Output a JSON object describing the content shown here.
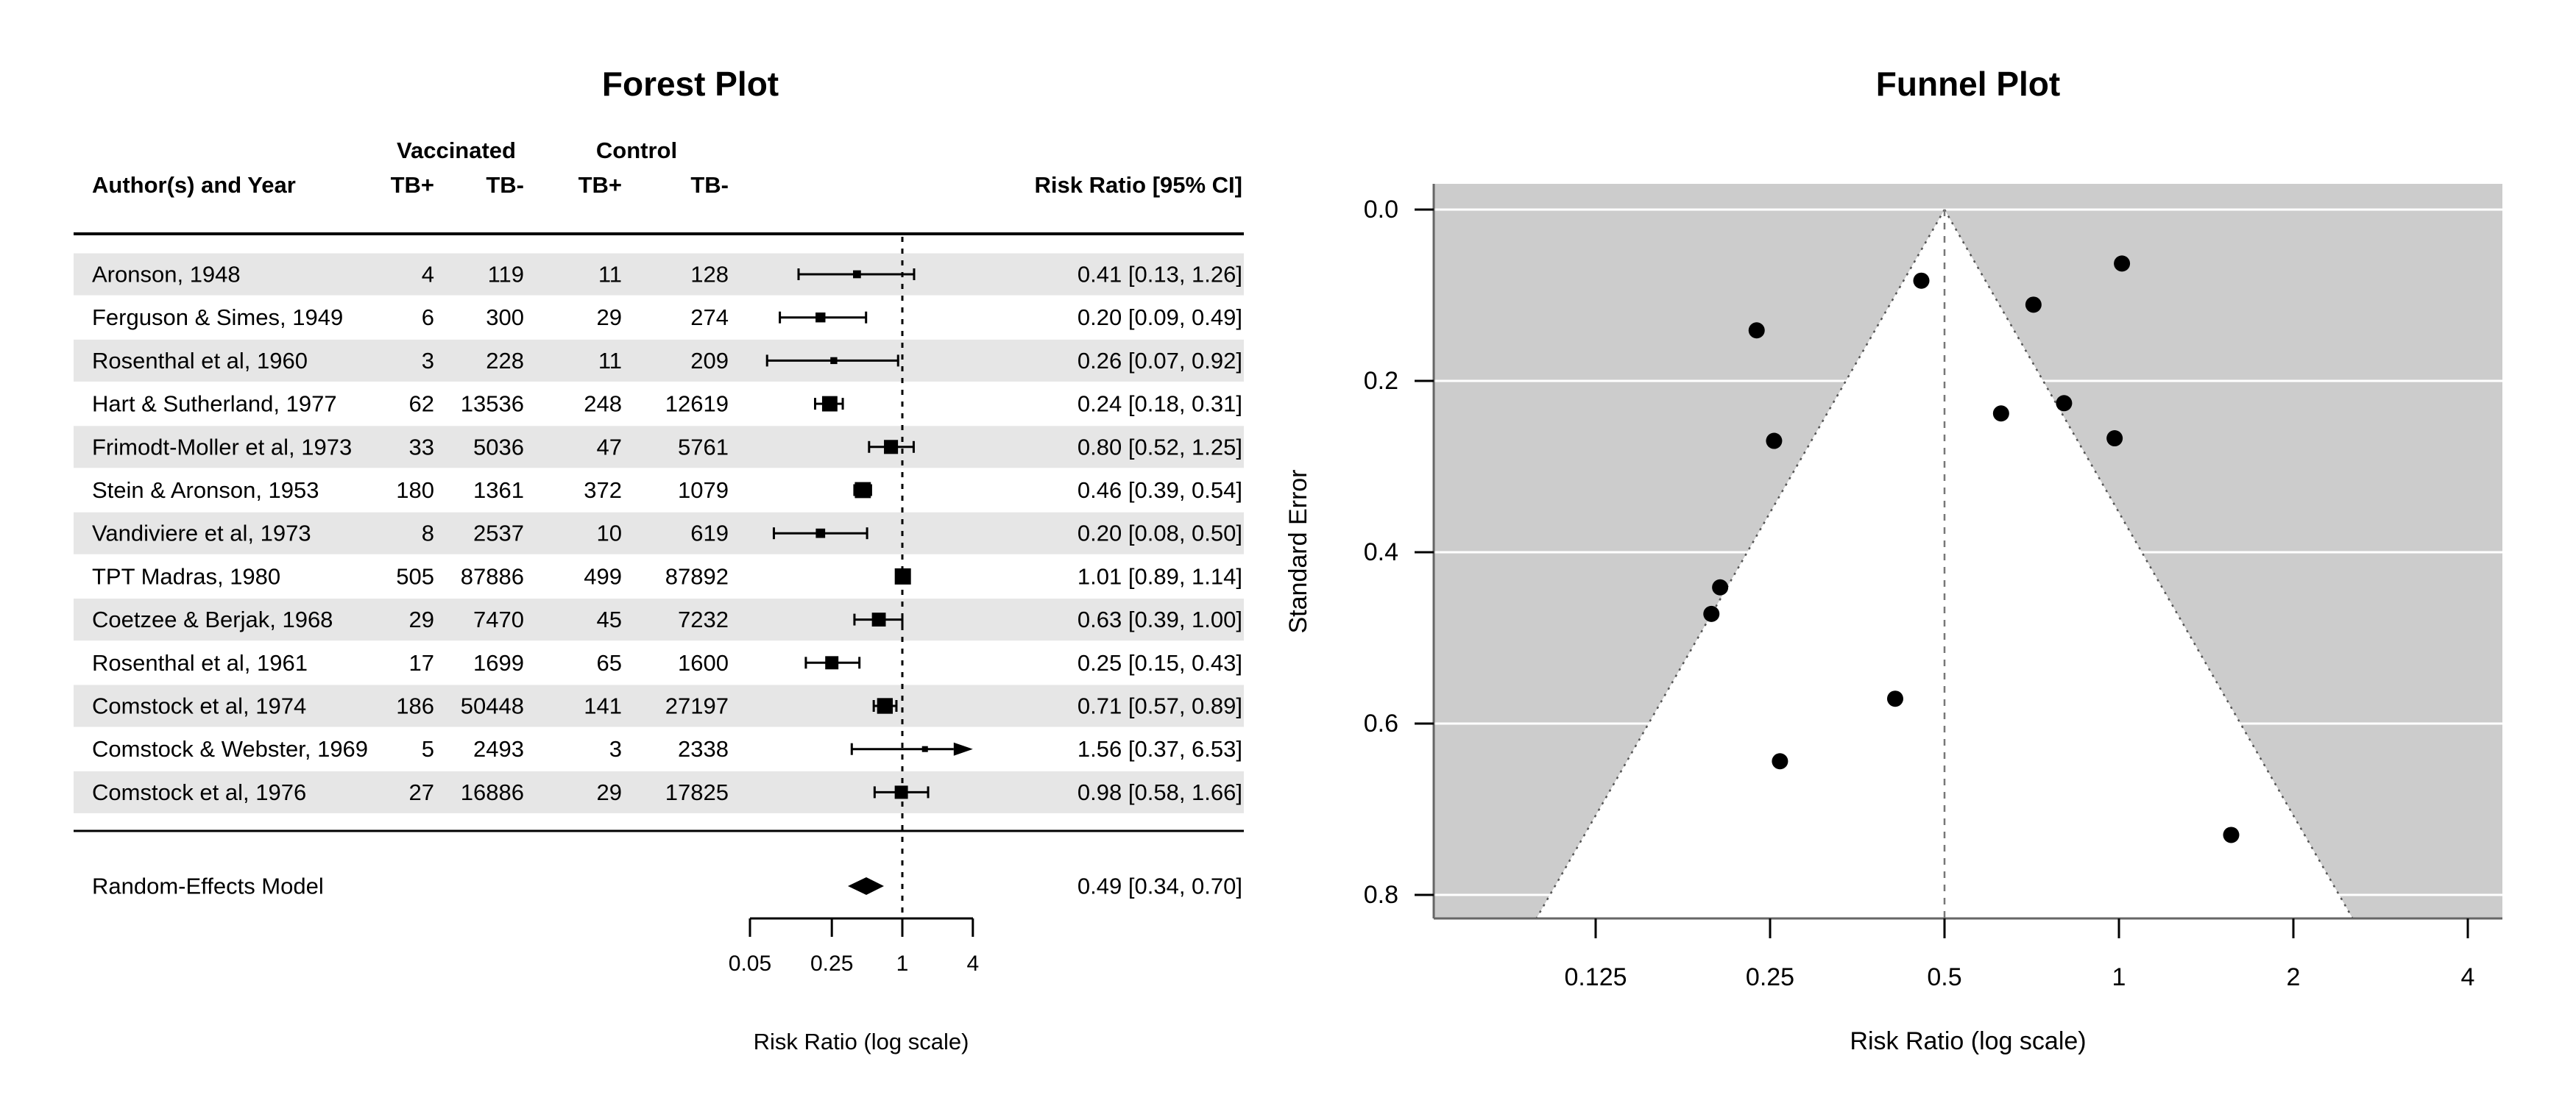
{
  "colors": {
    "funnel_background": "#cccccc",
    "funnel_region": "#ffffff",
    "row_stripe": "#e6e6e6",
    "marker": "#000000",
    "gridline": "#ffffff",
    "axis_line": "#666666",
    "dotted_edge": "#555555"
  },
  "chart_data": [
    {
      "type": "forest",
      "title": "Forest Plot",
      "columns": {
        "author": "Author(s) and Year",
        "group1": "Vaccinated",
        "group2": "Control",
        "subheaders": [
          "TB+",
          "TB-",
          "TB+",
          "TB-"
        ],
        "effect": "Risk Ratio [95% CI]"
      },
      "studies": [
        {
          "author": "Aronson, 1948",
          "v_tbpos": "4",
          "v_tbneg": "119",
          "c_tbpos": "11",
          "c_tbneg": "128",
          "rr": 0.41,
          "ci_lo": 0.13,
          "ci_hi": 1.26,
          "label": "0.41 [0.13, 1.26]",
          "weight": 0.5,
          "arrow": false
        },
        {
          "author": "Ferguson & Simes, 1949",
          "v_tbpos": "6",
          "v_tbneg": "300",
          "c_tbpos": "29",
          "c_tbneg": "274",
          "rr": 0.2,
          "ci_lo": 0.09,
          "ci_hi": 0.49,
          "label": "0.20 [0.09, 0.49]",
          "weight": 0.62,
          "arrow": false
        },
        {
          "author": "Rosenthal et al, 1960",
          "v_tbpos": "3",
          "v_tbneg": "228",
          "c_tbpos": "11",
          "c_tbneg": "209",
          "rr": 0.26,
          "ci_lo": 0.07,
          "ci_hi": 0.92,
          "label": "0.26 [0.07, 0.92]",
          "weight": 0.44,
          "arrow": false
        },
        {
          "author": "Hart & Sutherland, 1977",
          "v_tbpos": "62",
          "v_tbneg": "13536",
          "c_tbpos": "248",
          "c_tbneg": "12619",
          "rr": 0.24,
          "ci_lo": 0.18,
          "ci_hi": 0.31,
          "label": "0.24 [0.18, 0.31]",
          "weight": 0.95,
          "arrow": false
        },
        {
          "author": "Frimodt-Moller et al, 1973",
          "v_tbpos": "33",
          "v_tbneg": "5036",
          "c_tbpos": "47",
          "c_tbneg": "5761",
          "rr": 0.8,
          "ci_lo": 0.52,
          "ci_hi": 1.25,
          "label": "0.80 [0.52, 1.25]",
          "weight": 0.87,
          "arrow": false
        },
        {
          "author": "Stein & Aronson, 1953",
          "v_tbpos": "180",
          "v_tbneg": "1361",
          "c_tbpos": "372",
          "c_tbneg": "1079",
          "rr": 0.46,
          "ci_lo": 0.39,
          "ci_hi": 0.54,
          "label": "0.46 [0.39, 0.54]",
          "weight": 0.99,
          "arrow": false
        },
        {
          "author": "Vandiviere et al, 1973",
          "v_tbpos": "8",
          "v_tbneg": "2537",
          "c_tbpos": "10",
          "c_tbneg": "619",
          "rr": 0.2,
          "ci_lo": 0.08,
          "ci_hi": 0.5,
          "label": "0.20 [0.08, 0.50]",
          "weight": 0.59,
          "arrow": false
        },
        {
          "author": "TPT Madras, 1980",
          "v_tbpos": "505",
          "v_tbneg": "87886",
          "c_tbpos": "499",
          "c_tbneg": "87892",
          "rr": 1.01,
          "ci_lo": 0.89,
          "ci_hi": 1.14,
          "label": "1.01 [0.89, 1.14]",
          "weight": 1.0,
          "arrow": false
        },
        {
          "author": "Coetzee & Berjak, 1968",
          "v_tbpos": "29",
          "v_tbneg": "7470",
          "c_tbpos": "45",
          "c_tbneg": "7232",
          "rr": 0.63,
          "ci_lo": 0.39,
          "ci_hi": 1.0,
          "label": "0.63 [0.39, 1.00]",
          "weight": 0.86,
          "arrow": false
        },
        {
          "author": "Rosenthal et al, 1961",
          "v_tbpos": "17",
          "v_tbneg": "1699",
          "c_tbpos": "65",
          "c_tbneg": "1600",
          "rr": 0.25,
          "ci_lo": 0.15,
          "ci_hi": 0.43,
          "label": "0.25 [0.15, 0.43]",
          "weight": 0.82,
          "arrow": false
        },
        {
          "author": "Comstock et al, 1974",
          "v_tbpos": "186",
          "v_tbneg": "50448",
          "c_tbpos": "141",
          "c_tbneg": "27197",
          "rr": 0.71,
          "ci_lo": 0.57,
          "ci_hi": 0.89,
          "label": "0.71 [0.57, 0.89]",
          "weight": 0.97,
          "arrow": false
        },
        {
          "author": "Comstock & Webster, 1969",
          "v_tbpos": "5",
          "v_tbneg": "2493",
          "c_tbpos": "3",
          "c_tbneg": "2338",
          "rr": 1.56,
          "ci_lo": 0.37,
          "ci_hi": 6.53,
          "label": "1.56 [0.37, 6.53]",
          "weight": 0.38,
          "arrow": true
        },
        {
          "author": "Comstock et al, 1976",
          "v_tbpos": "27",
          "v_tbneg": "16886",
          "c_tbpos": "29",
          "c_tbneg": "17825",
          "rr": 0.98,
          "ci_lo": 0.58,
          "ci_hi": 1.66,
          "label": "0.98 [0.58, 1.66]",
          "weight": 0.82,
          "arrow": false
        }
      ],
      "summary": {
        "label": "Random-Effects Model",
        "rr": 0.49,
        "ci_lo": 0.34,
        "ci_hi": 0.7,
        "label_ci": "0.49 [0.34, 0.70]"
      },
      "xaxis": {
        "title": "Risk Ratio (log scale)",
        "ticks": [
          0.05,
          0.25,
          1,
          4
        ],
        "tick_labels": [
          "0.05",
          "0.25",
          "1",
          "4"
        ],
        "ref_line": 1,
        "range": [
          0.05,
          4
        ],
        "scale": "log"
      }
    },
    {
      "type": "scatter",
      "title": "Funnel Plot",
      "xlabel": "Risk Ratio (log scale)",
      "ylabel": "Standard Error",
      "x_scale": "log",
      "y_reversed": true,
      "x_ticks": [
        0.125,
        0.25,
        0.5,
        1,
        2,
        4
      ],
      "x_tick_labels": [
        "0.125",
        "0.25",
        "0.5",
        "1",
        "2",
        "4"
      ],
      "y_ticks": [
        0.0,
        0.2,
        0.4,
        0.6,
        0.8
      ],
      "y_tick_labels": [
        "0.0",
        "0.2",
        "0.4",
        "0.6",
        "0.8"
      ],
      "ylim": [
        0,
        0.83
      ],
      "center_estimate": 0.5,
      "funnel_z": 1.96,
      "grid": true,
      "points": [
        {
          "study": "Aronson, 1948",
          "rr": 0.411,
          "se": 0.571
        },
        {
          "study": "Ferguson & Simes, 1949",
          "rr": 0.205,
          "se": 0.441
        },
        {
          "study": "Rosenthal et al, 1960",
          "rr": 0.26,
          "se": 0.644
        },
        {
          "study": "Hart & Sutherland, 1977",
          "rr": 0.237,
          "se": 0.141
        },
        {
          "study": "Frimodt-Moller et al, 1973",
          "rr": 0.804,
          "se": 0.226
        },
        {
          "study": "Stein & Aronson, 1953",
          "rr": 0.456,
          "se": 0.083
        },
        {
          "study": "Vandiviere et al, 1973",
          "rr": 0.198,
          "se": 0.472
        },
        {
          "study": "TPT Madras, 1980",
          "rr": 1.012,
          "se": 0.063
        },
        {
          "study": "Coetzee & Berjak, 1968",
          "rr": 0.626,
          "se": 0.238
        },
        {
          "study": "Rosenthal et al, 1961",
          "rr": 0.254,
          "se": 0.27
        },
        {
          "study": "Comstock et al, 1974",
          "rr": 0.712,
          "se": 0.111
        },
        {
          "study": "Comstock & Webster, 1969",
          "rr": 1.562,
          "se": 0.73
        },
        {
          "study": "Comstock et al, 1976",
          "rr": 0.983,
          "se": 0.267
        }
      ]
    }
  ]
}
